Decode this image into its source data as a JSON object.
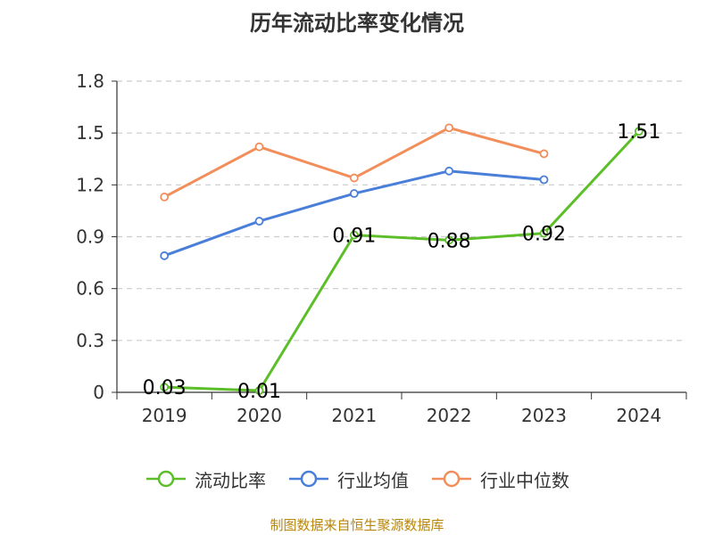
{
  "chart_data": {
    "type": "line",
    "title": "历年流动比率变化情况",
    "categories": [
      "2019",
      "2020",
      "2021",
      "2022",
      "2023",
      "2024"
    ],
    "ylim": [
      0,
      1.8
    ],
    "yticks": [
      "0",
      "0.3",
      "0.6",
      "0.9",
      "1.2",
      "1.5",
      "1.8"
    ],
    "grid": true,
    "legend_position": "bottom",
    "series": [
      {
        "name": "流动比率",
        "color": "#5cbf2a",
        "values": [
          0.03,
          0.01,
          0.91,
          0.88,
          0.92,
          1.51
        ],
        "labels": [
          "0.03",
          "0.01",
          "0.91",
          "0.88",
          "0.92",
          "1.51"
        ]
      },
      {
        "name": "行业均值",
        "color": "#4a7fd9",
        "values": [
          0.79,
          0.99,
          1.15,
          1.28,
          1.23,
          null
        ]
      },
      {
        "name": "行业中位数",
        "color": "#f28e5a",
        "values": [
          1.13,
          1.42,
          1.24,
          1.53,
          1.38,
          null
        ]
      }
    ]
  },
  "source": "制图数据来自恒生聚源数据库"
}
